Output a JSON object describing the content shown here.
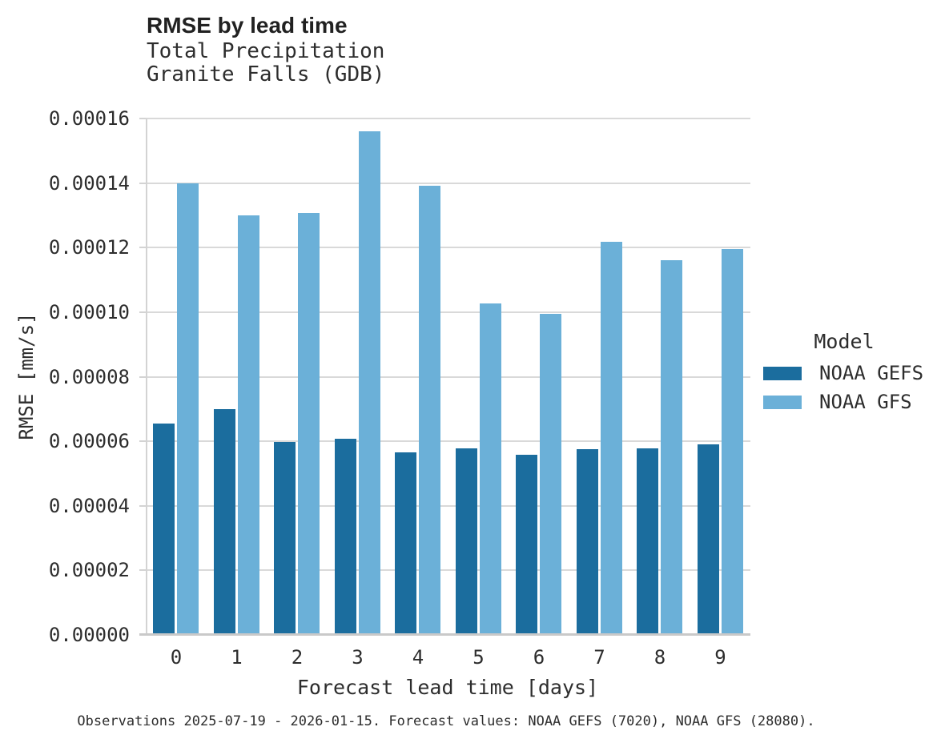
{
  "header": {
    "title": "RMSE by lead time",
    "subtitle_line1": "Total Precipitation",
    "subtitle_line2": "Granite Falls (GDB)"
  },
  "chart_data": {
    "type": "bar",
    "title": "RMSE by lead time",
    "subtitle": [
      "Total Precipitation",
      "Granite Falls (GDB)"
    ],
    "categories": [
      "0",
      "1",
      "2",
      "3",
      "4",
      "5",
      "6",
      "7",
      "8",
      "9"
    ],
    "series": [
      {
        "name": "NOAA GEFS",
        "color": "#1b6d9e",
        "values": [
          6.55e-05,
          7e-05,
          5.97e-05,
          6.08e-05,
          5.65e-05,
          5.79e-05,
          5.59e-05,
          5.76e-05,
          5.78e-05,
          5.9e-05
        ]
      },
      {
        "name": "NOAA GFS",
        "color": "#6bb0d8",
        "values": [
          0.0001398,
          0.00013,
          0.0001307,
          0.0001561,
          0.0001392,
          0.0001027,
          9.96e-05,
          0.0001217,
          0.0001162,
          0.0001196
        ]
      }
    ],
    "xlabel": "Forecast lead time [days]",
    "ylabel": "RMSE [mm/s]",
    "ylim": [
      0,
      0.00016
    ],
    "ytick_labels": [
      "0.00000",
      "0.00002",
      "0.00004",
      "0.00006",
      "0.00008",
      "0.00010",
      "0.00012",
      "0.00014",
      "0.00016"
    ],
    "grid": true,
    "gridline_color": "#d9d9d9",
    "axis_color": "#c9c9c9",
    "legend_position": "right"
  },
  "legend": {
    "title": "Model",
    "items": [
      {
        "label": "NOAA GEFS",
        "color": "#1b6d9e"
      },
      {
        "label": "NOAA GFS",
        "color": "#6bb0d8"
      }
    ]
  },
  "footer": {
    "caption": "Observations 2025-07-19 - 2026-01-15. Forecast values: NOAA GEFS (7020), NOAA GFS (28080)."
  }
}
